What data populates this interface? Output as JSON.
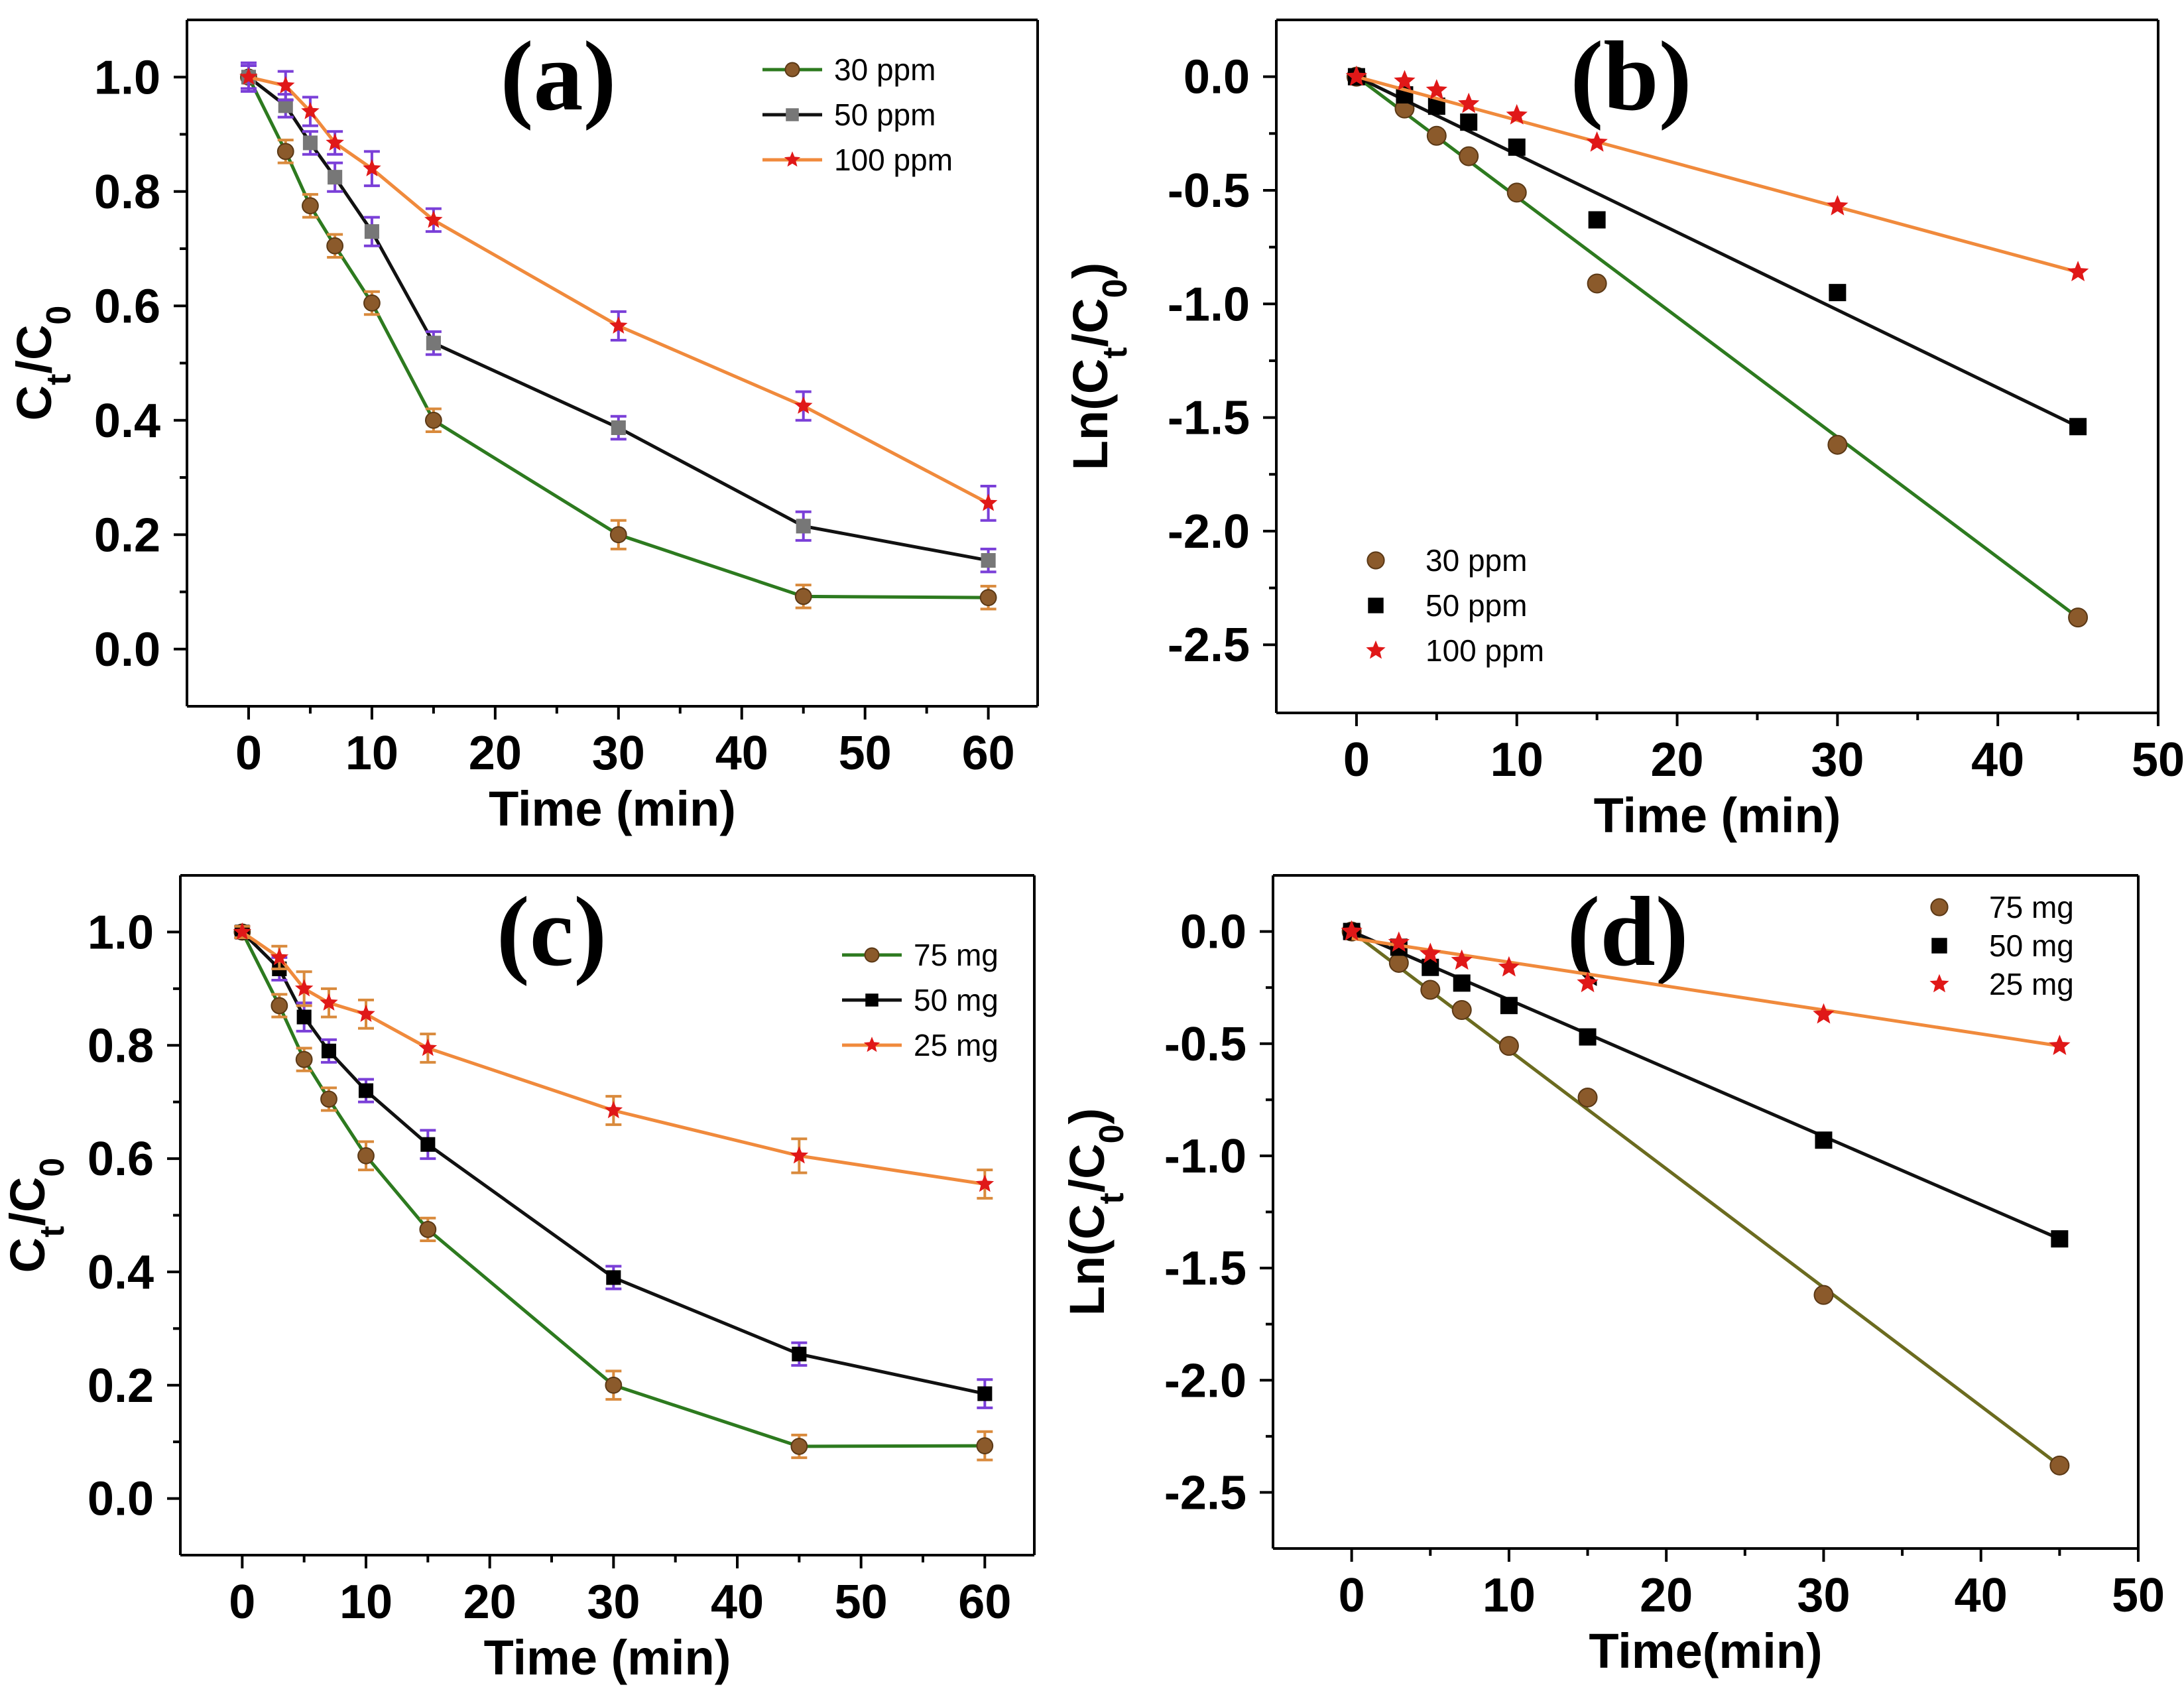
{
  "colors": {
    "green_line": "#2d7a1f",
    "black_line": "#111111",
    "orange_line": "#f08a3c",
    "brown_marker": "#8b5a2b",
    "gray_marker": "#777777",
    "red_marker": "#e01818",
    "errbar_purple": "#7a3fd8",
    "errbar_orange": "#d98a3c"
  },
  "chart_data": [
    {
      "id": "a",
      "type": "line",
      "panel_label": "(a)",
      "xlabel": "Time (min)",
      "ylabel": "C_t/C_0",
      "xlim": [
        -5,
        64
      ],
      "ylim": [
        -0.1,
        1.1
      ],
      "xticks": [
        0,
        10,
        20,
        30,
        40,
        50,
        60
      ],
      "xtick_labels": [
        "0",
        "10",
        "20",
        "30",
        "40",
        "50",
        "60"
      ],
      "yticks": [
        0.0,
        0.2,
        0.4,
        0.6,
        0.8,
        1.0
      ],
      "ytick_labels": [
        "0.0",
        "0.2",
        "0.4",
        "0.6",
        "0.8",
        "1.0"
      ],
      "legend_position": "top-right",
      "series": [
        {
          "name": "30  ppm",
          "marker": "circle",
          "line_color": "#2d7a1f",
          "marker_color": "#8b5a2b",
          "err_color": "#d98a3c",
          "x": [
            0,
            3,
            5,
            7,
            10,
            15,
            30,
            45,
            60
          ],
          "y": [
            1.0,
            0.87,
            0.775,
            0.705,
            0.605,
            0.4,
            0.2,
            0.092,
            0.09
          ],
          "err": [
            0.02,
            0.02,
            0.02,
            0.02,
            0.02,
            0.02,
            0.025,
            0.02,
            0.02
          ]
        },
        {
          "name": "50  ppm",
          "marker": "square",
          "line_color": "#111111",
          "marker_color": "#777777",
          "err_color": "#7a3fd8",
          "x": [
            0,
            3,
            5,
            7,
            10,
            15,
            30,
            45,
            60
          ],
          "y": [
            1.0,
            0.95,
            0.885,
            0.825,
            0.73,
            0.535,
            0.387,
            0.215,
            0.155
          ],
          "err": [
            0.025,
            0.02,
            0.02,
            0.025,
            0.025,
            0.02,
            0.02,
            0.025,
            0.02
          ]
        },
        {
          "name": "100 ppm",
          "marker": "star",
          "line_color": "#f08a3c",
          "marker_color": "#e01818",
          "err_color": "#7a3fd8",
          "x": [
            0,
            3,
            5,
            7,
            10,
            15,
            30,
            45,
            60
          ],
          "y": [
            1.0,
            0.985,
            0.94,
            0.885,
            0.84,
            0.75,
            0.565,
            0.425,
            0.255
          ],
          "err": [
            0.02,
            0.025,
            0.025,
            0.02,
            0.03,
            0.02,
            0.025,
            0.025,
            0.03
          ]
        }
      ]
    },
    {
      "id": "b",
      "type": "scatter",
      "panel_label": "(b)",
      "xlabel": "Time (min)",
      "ylabel": "Ln(C_t/C_0)",
      "xlim": [
        -5,
        50
      ],
      "ylim": [
        -2.8,
        0.25
      ],
      "xticks": [
        0,
        10,
        20,
        30,
        40,
        50
      ],
      "xtick_labels": [
        "0",
        "10",
        "20",
        "30",
        "40",
        "50"
      ],
      "yticks": [
        0.0,
        -0.5,
        -1.0,
        -1.5,
        -2.0,
        -2.5
      ],
      "ytick_labels": [
        "0.0",
        "-0.5",
        "-1.0",
        "-1.5",
        "-2.0",
        "-2.5"
      ],
      "legend_position": "bottom-left",
      "series": [
        {
          "name": "30 ppm",
          "marker": "circle",
          "line_color": "#2d7a1f",
          "marker_color": "#8b5a2b",
          "x": [
            0,
            3,
            5,
            7,
            10,
            15,
            30,
            45
          ],
          "y": [
            0.0,
            -0.14,
            -0.26,
            -0.35,
            -0.51,
            -0.91,
            -1.62,
            -2.38
          ],
          "fit": {
            "x": [
              0,
              45
            ],
            "y": [
              0.0,
              -2.38
            ]
          }
        },
        {
          "name": "50 ppm",
          "marker": "square",
          "line_color": "#111111",
          "marker_color": "#000000",
          "x": [
            0,
            3,
            5,
            7,
            10,
            15,
            30,
            45
          ],
          "y": [
            0.0,
            -0.08,
            -0.13,
            -0.2,
            -0.31,
            -0.63,
            -0.95,
            -1.54
          ],
          "fit": {
            "x": [
              0,
              45
            ],
            "y": [
              0.0,
              -1.54
            ]
          }
        },
        {
          "name": "100 ppm",
          "marker": "star",
          "line_color": "#f08a3c",
          "marker_color": "#e01818",
          "x": [
            0,
            3,
            5,
            7,
            10,
            15,
            30,
            45
          ],
          "y": [
            0.0,
            -0.02,
            -0.06,
            -0.12,
            -0.17,
            -0.29,
            -0.57,
            -0.86
          ],
          "fit": {
            "x": [
              0,
              45
            ],
            "y": [
              0.0,
              -0.86
            ]
          }
        }
      ]
    },
    {
      "id": "c",
      "type": "line",
      "panel_label": "(c)",
      "xlabel": "Time (min)",
      "ylabel": "C_t/C_0",
      "xlim": [
        -5,
        64
      ],
      "ylim": [
        -0.1,
        1.1
      ],
      "xticks": [
        0,
        10,
        20,
        30,
        40,
        50,
        60
      ],
      "xtick_labels": [
        "0",
        "10",
        "20",
        "30",
        "40",
        "50",
        "60"
      ],
      "yticks": [
        0.0,
        0.2,
        0.4,
        0.6,
        0.8,
        1.0
      ],
      "ytick_labels": [
        "0.0",
        "0.2",
        "0.4",
        "0.6",
        "0.8",
        "1.0"
      ],
      "legend_position": "top-right",
      "series": [
        {
          "name": "75 mg",
          "marker": "circle",
          "line_color": "#2d7a1f",
          "marker_color": "#8b5a2b",
          "err_color": "#d98a3c",
          "x": [
            0,
            3,
            5,
            7,
            10,
            15,
            30,
            45,
            60
          ],
          "y": [
            1.0,
            0.87,
            0.775,
            0.705,
            0.605,
            0.475,
            0.2,
            0.092,
            0.093
          ],
          "err": [
            0.01,
            0.02,
            0.02,
            0.02,
            0.025,
            0.02,
            0.025,
            0.02,
            0.025
          ]
        },
        {
          "name": "50 mg",
          "marker": "square",
          "line_color": "#111111",
          "marker_color": "#000000",
          "err_color": "#7a3fd8",
          "x": [
            0,
            3,
            5,
            7,
            10,
            15,
            30,
            45,
            60
          ],
          "y": [
            1.0,
            0.935,
            0.85,
            0.79,
            0.72,
            0.625,
            0.39,
            0.255,
            0.185
          ],
          "err": [
            0.01,
            0.02,
            0.025,
            0.02,
            0.02,
            0.025,
            0.02,
            0.02,
            0.025
          ]
        },
        {
          "name": "25 mg",
          "marker": "star",
          "line_color": "#f08a3c",
          "marker_color": "#e01818",
          "err_color": "#d98a3c",
          "x": [
            0,
            3,
            5,
            7,
            10,
            15,
            30,
            45,
            60
          ],
          "y": [
            1.0,
            0.955,
            0.9,
            0.875,
            0.855,
            0.795,
            0.685,
            0.605,
            0.555
          ],
          "err": [
            0.01,
            0.02,
            0.03,
            0.025,
            0.025,
            0.025,
            0.025,
            0.03,
            0.025
          ]
        }
      ]
    },
    {
      "id": "d",
      "type": "scatter",
      "panel_label": "(d)",
      "xlabel": "Time(min)",
      "ylabel": "Ln(C_t/C_0)",
      "xlim": [
        -5,
        50
      ],
      "ylim": [
        -2.75,
        0.25
      ],
      "xticks": [
        0,
        10,
        20,
        30,
        40,
        50
      ],
      "xtick_labels": [
        "0",
        "10",
        "20",
        "30",
        "40",
        "50"
      ],
      "yticks": [
        0.0,
        -0.5,
        -1.0,
        -1.5,
        -2.0,
        -2.5
      ],
      "ytick_labels": [
        "0.0",
        "-0.5",
        "-1.0",
        "-1.5",
        "-2.0",
        "-2.5"
      ],
      "legend_position": "top-right",
      "series": [
        {
          "name": "75 mg",
          "marker": "circle",
          "line_color": "#6b6b1f",
          "marker_color": "#8b5a2b",
          "x": [
            0,
            3,
            5,
            7,
            10,
            15,
            30,
            45
          ],
          "y": [
            0.0,
            -0.14,
            -0.26,
            -0.35,
            -0.51,
            -0.74,
            -1.62,
            -2.38
          ],
          "fit": {
            "x": [
              0,
              45
            ],
            "y": [
              0.0,
              -2.38
            ]
          }
        },
        {
          "name": "50 mg",
          "marker": "square",
          "line_color": "#111111",
          "marker_color": "#000000",
          "x": [
            0,
            3,
            5,
            7,
            10,
            15,
            30,
            45
          ],
          "y": [
            0.0,
            -0.07,
            -0.16,
            -0.23,
            -0.33,
            -0.47,
            -0.93,
            -1.37
          ],
          "fit": {
            "x": [
              0,
              45
            ],
            "y": [
              0.0,
              -1.37
            ]
          }
        },
        {
          "name": "25 mg",
          "marker": "star",
          "line_color": "#f08a3c",
          "marker_color": "#e01818",
          "x": [
            0,
            3,
            5,
            7,
            10,
            15,
            30,
            45
          ],
          "y": [
            0.0,
            -0.05,
            -0.1,
            -0.13,
            -0.16,
            -0.23,
            -0.37,
            -0.51
          ],
          "fit": {
            "x": [
              0,
              45
            ],
            "y": [
              -0.03,
              -0.51
            ]
          }
        }
      ]
    }
  ]
}
